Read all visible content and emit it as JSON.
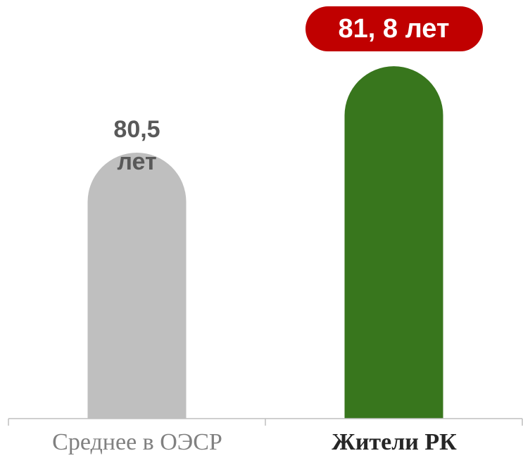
{
  "chart_data": {
    "type": "bar",
    "categories": [
      "Среднее в ОЭСР",
      "Жители РК"
    ],
    "values": [
      80.5,
      81.8
    ],
    "value_labels": [
      "80,5 лет",
      "81, 8 лет"
    ],
    "colors": [
      "#bfbfbf",
      "#38761d"
    ],
    "ylim": [
      76.5,
      82.5
    ]
  }
}
